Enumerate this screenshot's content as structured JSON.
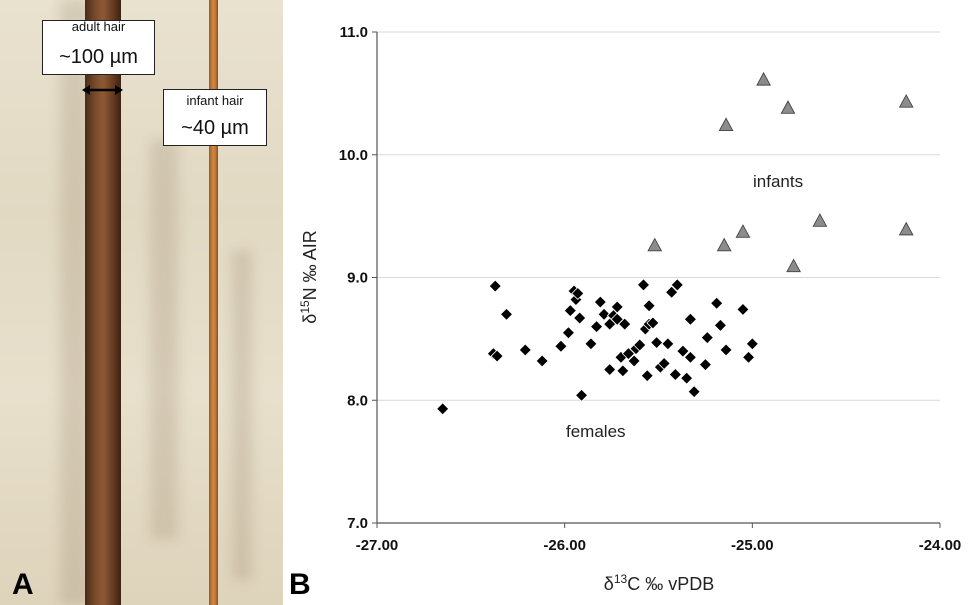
{
  "panel_a": {
    "letter": "A",
    "adult_label": "adult hair",
    "adult_size": "~100 µm",
    "infant_label": "infant hair",
    "infant_size": "~40 µm"
  },
  "panel_b": {
    "letter": "B"
  },
  "chart_data": {
    "type": "scatter",
    "xlabel_main": "δ",
    "xlabel_sup": "13",
    "xlabel_rest": "C ‰  vPDB",
    "ylabel_main": "δ",
    "ylabel_sup": "15",
    "ylabel_rest": "N ‰  AIR",
    "xlim": [
      -27.0,
      -24.0
    ],
    "ylim": [
      7.0,
      11.0
    ],
    "x_ticks": [
      "-27.00",
      "-26.00",
      "-25.00",
      "-24.00"
    ],
    "y_ticks": [
      "7.0",
      "8.0",
      "9.0",
      "10.0",
      "11.0"
    ],
    "grid": "horizontal",
    "annotations": [
      "infants",
      "females"
    ],
    "colors": {
      "females": "#000000",
      "infants": "#8c8c8c",
      "grid": "#d9d9d9"
    },
    "series": [
      {
        "marker": "diamond",
        "points": [
          [
            -26.65,
            7.93
          ],
          [
            -26.37,
            8.93
          ],
          [
            -26.38,
            8.38
          ],
          [
            -26.36,
            8.36
          ],
          [
            -26.31,
            8.7
          ],
          [
            -26.21,
            8.41
          ],
          [
            -26.12,
            8.32
          ],
          [
            -26.02,
            8.44
          ],
          [
            -25.98,
            8.55
          ],
          [
            -25.97,
            8.73
          ],
          [
            -25.95,
            8.89
          ],
          [
            -25.94,
            8.82
          ],
          [
            -25.93,
            8.87
          ],
          [
            -25.92,
            8.67
          ],
          [
            -25.91,
            8.04
          ],
          [
            -25.86,
            8.46
          ],
          [
            -25.83,
            8.6
          ],
          [
            -25.81,
            8.8
          ],
          [
            -25.79,
            8.7
          ],
          [
            -25.76,
            8.62
          ],
          [
            -25.76,
            8.25
          ],
          [
            -25.74,
            8.69
          ],
          [
            -25.72,
            8.66
          ],
          [
            -25.72,
            8.76
          ],
          [
            -25.7,
            8.35
          ],
          [
            -25.69,
            8.24
          ],
          [
            -25.68,
            8.62
          ],
          [
            -25.66,
            8.38
          ],
          [
            -25.63,
            8.32
          ],
          [
            -25.62,
            8.42
          ],
          [
            -25.6,
            8.45
          ],
          [
            -25.58,
            8.94
          ],
          [
            -25.57,
            8.58
          ],
          [
            -25.56,
            8.2
          ],
          [
            -25.55,
            8.77
          ],
          [
            -25.55,
            8.62
          ],
          [
            -25.53,
            8.63
          ],
          [
            -25.51,
            8.47
          ],
          [
            -25.49,
            8.27
          ],
          [
            -25.47,
            8.3
          ],
          [
            -25.45,
            8.46
          ],
          [
            -25.43,
            8.88
          ],
          [
            -25.41,
            8.21
          ],
          [
            -25.4,
            8.94
          ],
          [
            -25.37,
            8.4
          ],
          [
            -25.35,
            8.18
          ],
          [
            -25.33,
            8.66
          ],
          [
            -25.33,
            8.35
          ],
          [
            -25.31,
            8.07
          ],
          [
            -25.25,
            8.29
          ],
          [
            -25.24,
            8.51
          ],
          [
            -25.19,
            8.79
          ],
          [
            -25.17,
            8.61
          ],
          [
            -25.14,
            8.41
          ],
          [
            -25.05,
            8.74
          ],
          [
            -25.02,
            8.35
          ],
          [
            -25.0,
            8.46
          ]
        ]
      },
      {
        "marker": "triangle",
        "points": [
          [
            -25.52,
            9.26
          ],
          [
            -25.15,
            9.26
          ],
          [
            -25.14,
            10.24
          ],
          [
            -25.05,
            9.37
          ],
          [
            -24.94,
            10.61
          ],
          [
            -24.81,
            10.38
          ],
          [
            -24.78,
            9.09
          ],
          [
            -24.64,
            9.46
          ],
          [
            -24.18,
            10.43
          ],
          [
            -24.18,
            9.39
          ]
        ]
      }
    ]
  }
}
